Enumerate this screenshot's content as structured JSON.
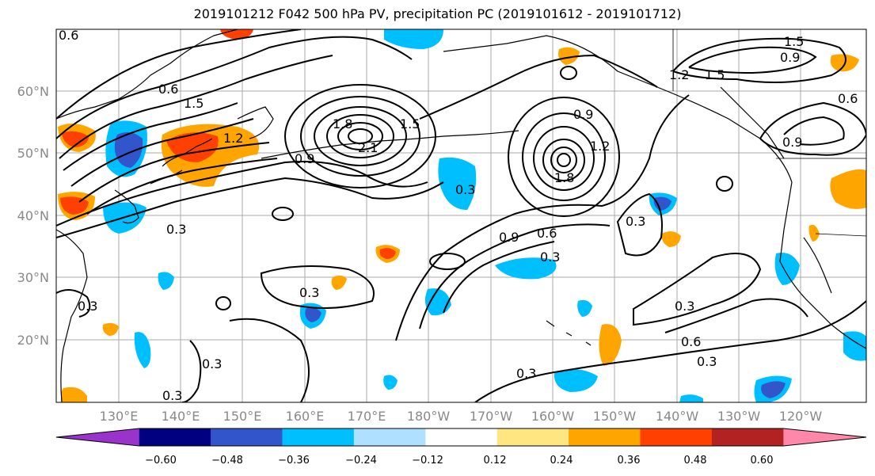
{
  "title": "2019101212 F042 500 hPa PV, precipitation PC (2019101612 - 2019101712)",
  "map": {
    "lon_labels": [
      "130°E",
      "140°E",
      "150°E",
      "160°E",
      "170°E",
      "180°W",
      "170°W",
      "160°W",
      "150°W",
      "140°W",
      "130°W",
      "120°W"
    ],
    "lat_labels": [
      "60°N",
      "50°N",
      "40°N",
      "30°N",
      "20°N"
    ],
    "contour_labels": [
      "0.6",
      "0.6",
      "1.5",
      "1.2",
      "1.8",
      "2.1",
      "1.5",
      "0.9",
      "0.9",
      "1.2",
      "1.8",
      "0.3",
      "0.3",
      "0.3",
      "0.9",
      "0.6",
      "0.3",
      "0.3",
      "0.3",
      "0.6",
      "0.3",
      "0.3",
      "0.3",
      "1.5",
      "0.9",
      "1.2",
      "1.5",
      "0.9",
      "0.6",
      "0.3",
      "0.3"
    ]
  },
  "colorbar": {
    "ticks": [
      "−0.60",
      "−0.48",
      "−0.36",
      "−0.24",
      "−0.12",
      "0.12",
      "0.24",
      "0.36",
      "0.48",
      "0.60"
    ],
    "colors": [
      "#9933cc",
      "#000080",
      "#3355cc",
      "#00bfff",
      "#b0e0ff",
      "#ffffff",
      "#ffe680",
      "#ffa500",
      "#ff4000",
      "#b22222",
      "#ff88aa"
    ]
  }
}
